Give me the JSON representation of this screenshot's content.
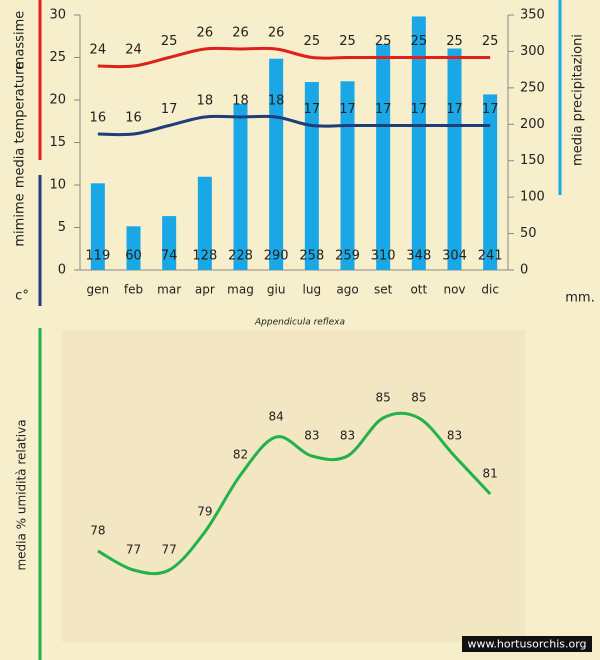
{
  "chart_data": [
    {
      "type": "combo",
      "title": "Appendicula reflexa",
      "ylabel": "media temperature",
      "yunit": "c°",
      "y2unit": "mm.",
      "categories": [
        "gen",
        "feb",
        "mar",
        "apr",
        "mag",
        "giu",
        "lug",
        "ago",
        "set",
        "ott",
        "nov",
        "dic"
      ],
      "ylim": [
        0,
        30
      ],
      "yticks": [
        0,
        5,
        10,
        15,
        20,
        25,
        30
      ],
      "y2lim": [
        0,
        350
      ],
      "y2ticks": [
        0,
        50,
        100,
        150,
        200,
        250,
        300,
        350
      ],
      "series": [
        {
          "name": "media precipitazioni",
          "kind": "bar",
          "axis": "y2",
          "color": "#1aa7e6",
          "values": [
            119,
            60,
            74,
            128,
            228,
            290,
            258,
            259,
            310,
            348,
            304,
            241
          ]
        },
        {
          "name": "massime",
          "kind": "line",
          "axis": "y",
          "color": "#e0201a",
          "values": [
            24,
            24,
            25,
            26,
            26,
            26,
            25,
            25,
            25,
            25,
            25,
            25
          ]
        },
        {
          "name": "mimime",
          "kind": "line",
          "axis": "y",
          "color": "#1f3d7a",
          "values": [
            16,
            16,
            17,
            18,
            18,
            18,
            17,
            17,
            17,
            17,
            17,
            17
          ]
        }
      ]
    },
    {
      "type": "line",
      "ylabel": "media % umidità relativa",
      "color": "#22b24a",
      "values": [
        78,
        77,
        77,
        79,
        82,
        84,
        83,
        83,
        85,
        85,
        83,
        81
      ]
    }
  ],
  "watermark": "www.hortusorchis.org"
}
